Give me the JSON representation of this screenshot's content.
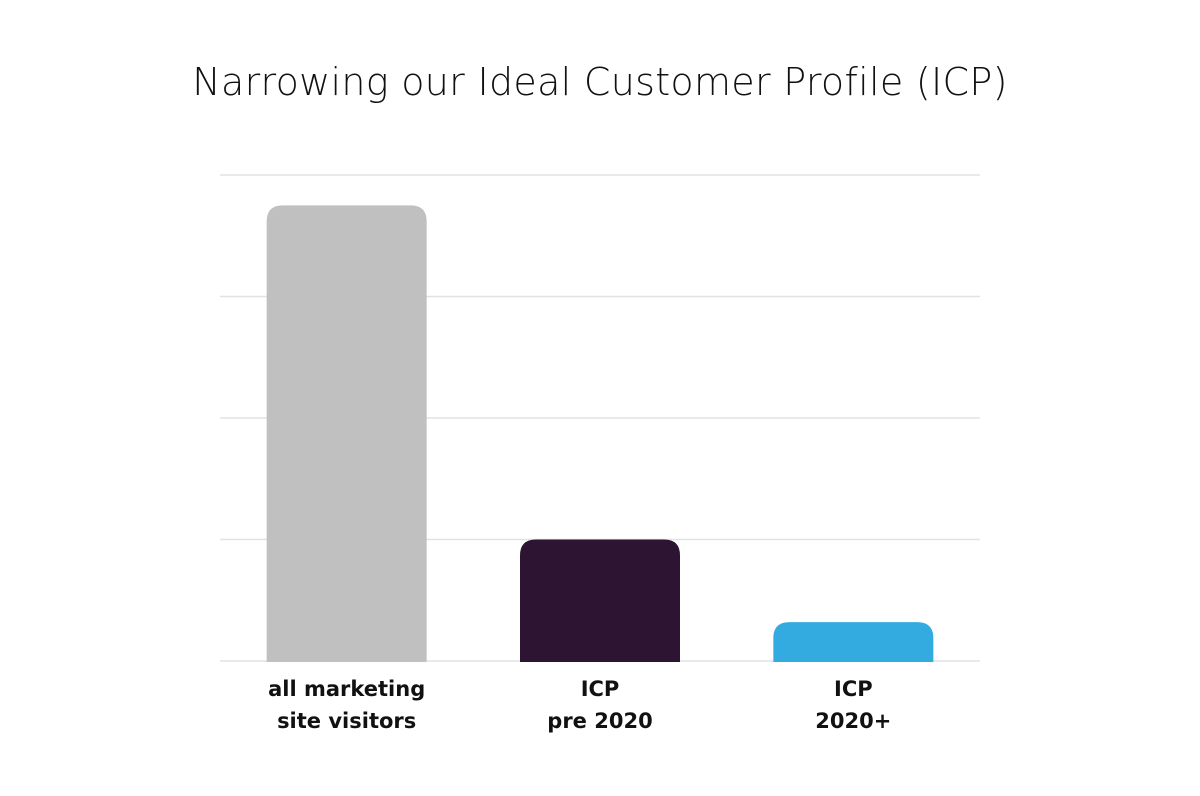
{
  "chart_data": {
    "type": "bar",
    "title": "Narrowing our Ideal Customer Profile (ICP)",
    "xlabel": "",
    "ylabel": "",
    "categories": [
      [
        "all marketing",
        "site visitors"
      ],
      [
        "ICP",
        "pre 2020"
      ],
      [
        "ICP",
        "2020+"
      ]
    ],
    "values": [
      3.75,
      1.0,
      0.32
    ],
    "colors": [
      "#c0c0c0",
      "#2c1432",
      "#34abe0"
    ],
    "ylim": [
      0,
      4
    ],
    "gridlines": [
      0,
      1,
      2,
      3,
      4
    ],
    "grid": true,
    "legend": "none"
  }
}
